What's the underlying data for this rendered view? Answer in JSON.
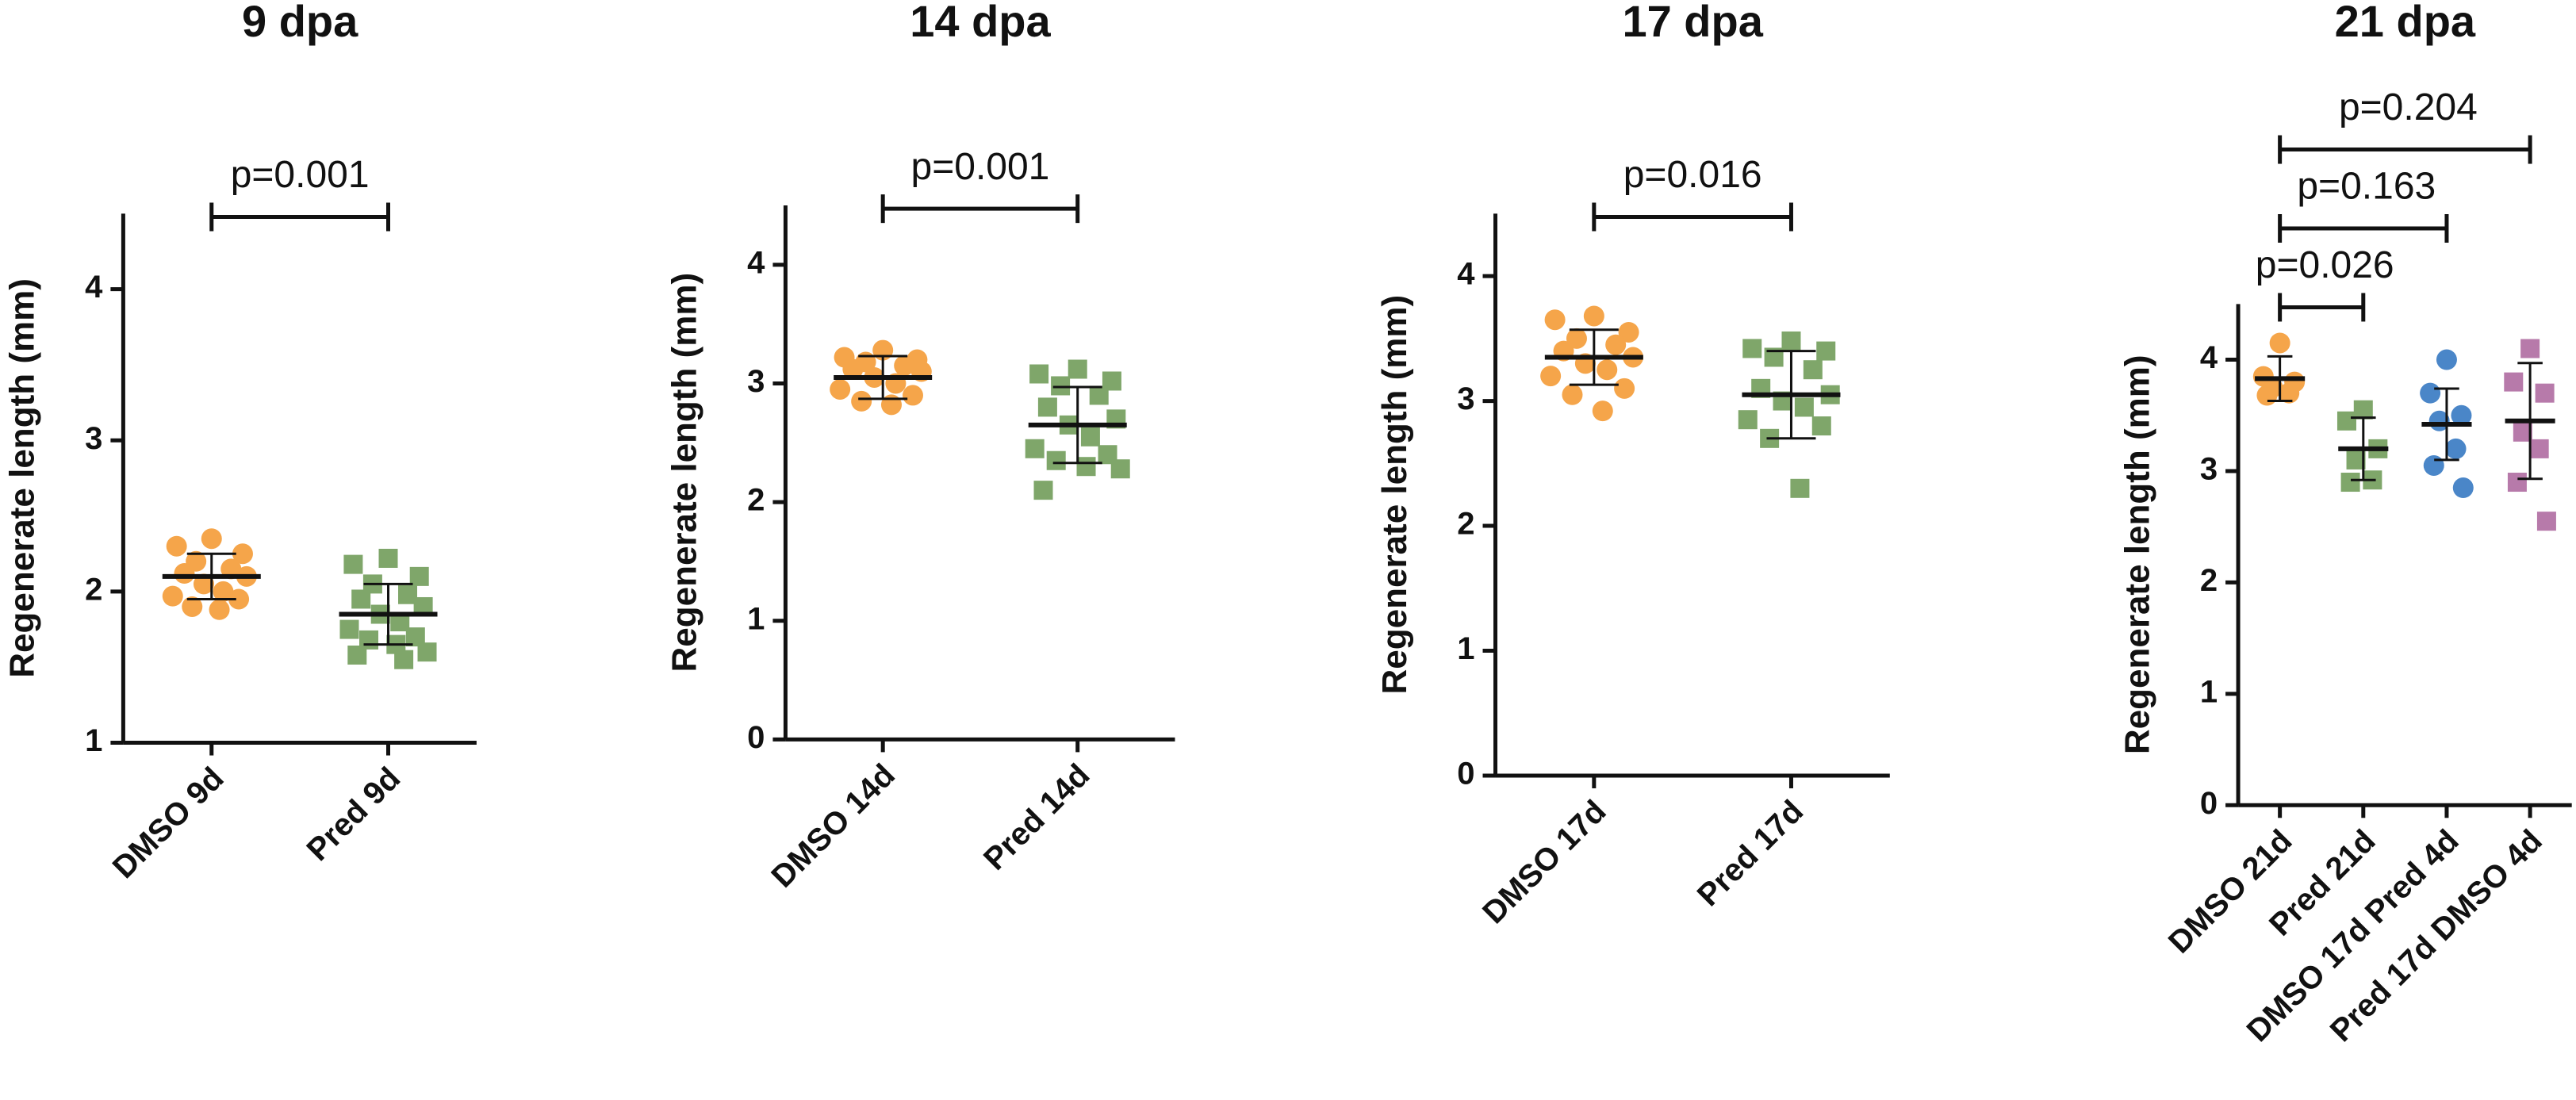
{
  "chart_data": [
    {
      "type": "dotplot",
      "title": "9 dpa",
      "y_label": "Regenerate length (mm)",
      "categories": [
        "DMSO 9d",
        "Pred 9d"
      ],
      "colors": [
        "#f5a54a",
        "#7fa66a"
      ],
      "markers": [
        "circle",
        "square"
      ],
      "points": [
        [
          2.35,
          2.3,
          2.25,
          2.2,
          2.15,
          2.12,
          2.1,
          2.05,
          2.0,
          1.97,
          1.95,
          1.9,
          1.88
        ],
        [
          2.22,
          2.18,
          2.1,
          2.05,
          1.98,
          1.95,
          1.9,
          1.85,
          1.8,
          1.75,
          1.7,
          1.68,
          1.65,
          1.6,
          1.58,
          1.55
        ]
      ],
      "means": [
        2.1,
        1.85
      ],
      "sds": [
        0.15,
        0.2
      ],
      "comparisons": [
        {
          "groups": [
            0,
            1
          ],
          "label": "p=0.001"
        }
      ],
      "ylim": [
        1,
        4.5
      ],
      "yticks": [
        1,
        2,
        3,
        4
      ]
    },
    {
      "type": "dotplot",
      "title": "14 dpa",
      "y_label": "Regenerate length (mm)",
      "categories": [
        "DMSO 14d",
        "Pred 14d"
      ],
      "colors": [
        "#f5a54a",
        "#7fa66a"
      ],
      "markers": [
        "circle",
        "square"
      ],
      "points": [
        [
          3.28,
          3.22,
          3.2,
          3.18,
          3.15,
          3.12,
          3.1,
          3.05,
          3.0,
          2.95,
          2.9,
          2.85,
          2.82
        ],
        [
          3.12,
          3.08,
          3.02,
          2.98,
          2.9,
          2.8,
          2.7,
          2.65,
          2.55,
          2.45,
          2.4,
          2.35,
          2.3,
          2.28,
          2.1
        ]
      ],
      "means": [
        3.05,
        2.65
      ],
      "sds": [
        0.18,
        0.32
      ],
      "comparisons": [
        {
          "groups": [
            0,
            1
          ],
          "label": "p=0.001"
        }
      ],
      "ylim": [
        0,
        4.5
      ],
      "yticks": [
        0,
        1,
        2,
        3,
        4
      ]
    },
    {
      "type": "dotplot",
      "title": "17 dpa",
      "y_label": "Regenerate length (mm)",
      "categories": [
        "DMSO 17d",
        "Pred 17d"
      ],
      "colors": [
        "#f5a54a",
        "#7fa66a"
      ],
      "markers": [
        "circle",
        "square"
      ],
      "points": [
        [
          3.68,
          3.65,
          3.55,
          3.5,
          3.45,
          3.4,
          3.35,
          3.3,
          3.25,
          3.2,
          3.1,
          3.05,
          2.92
        ],
        [
          3.48,
          3.42,
          3.4,
          3.35,
          3.25,
          3.1,
          3.05,
          3.0,
          2.95,
          2.85,
          2.8,
          2.7,
          2.3
        ]
      ],
      "means": [
        3.35,
        3.05
      ],
      "sds": [
        0.22,
        0.35
      ],
      "comparisons": [
        {
          "groups": [
            0,
            1
          ],
          "label": "p=0.016"
        }
      ],
      "ylim": [
        0,
        4.5
      ],
      "yticks": [
        0,
        1,
        2,
        3,
        4
      ]
    },
    {
      "type": "dotplot",
      "title": "21 dpa",
      "y_label": "Regenerate length (mm)",
      "categories": [
        "DMSO 21d",
        "Pred 21d",
        "DMSO 17d Pred 4d",
        "Pred 17d DMSO 4d"
      ],
      "colors": [
        "#f5a54a",
        "#7fa66a",
        "#4a86c8",
        "#b77aaa"
      ],
      "markers": [
        "circle",
        "square",
        "circle",
        "square"
      ],
      "points": [
        [
          4.15,
          3.85,
          3.8,
          3.75,
          3.7,
          3.68
        ],
        [
          3.55,
          3.45,
          3.2,
          3.1,
          2.92,
          2.9
        ],
        [
          4.0,
          3.7,
          3.5,
          3.45,
          3.2,
          3.05,
          2.85
        ],
        [
          4.1,
          3.8,
          3.7,
          3.35,
          3.2,
          2.9,
          2.55
        ]
      ],
      "means": [
        3.83,
        3.2,
        3.42,
        3.45
      ],
      "sds": [
        0.2,
        0.28,
        0.32,
        0.52
      ],
      "comparisons": [
        {
          "groups": [
            0,
            1
          ],
          "label": "p=0.026"
        },
        {
          "groups": [
            0,
            2
          ],
          "label": "p=0.163"
        },
        {
          "groups": [
            0,
            3
          ],
          "label": "p=0.204"
        }
      ],
      "ylim": [
        0,
        4.5
      ],
      "yticks": [
        0,
        1,
        2,
        3,
        4
      ]
    }
  ]
}
